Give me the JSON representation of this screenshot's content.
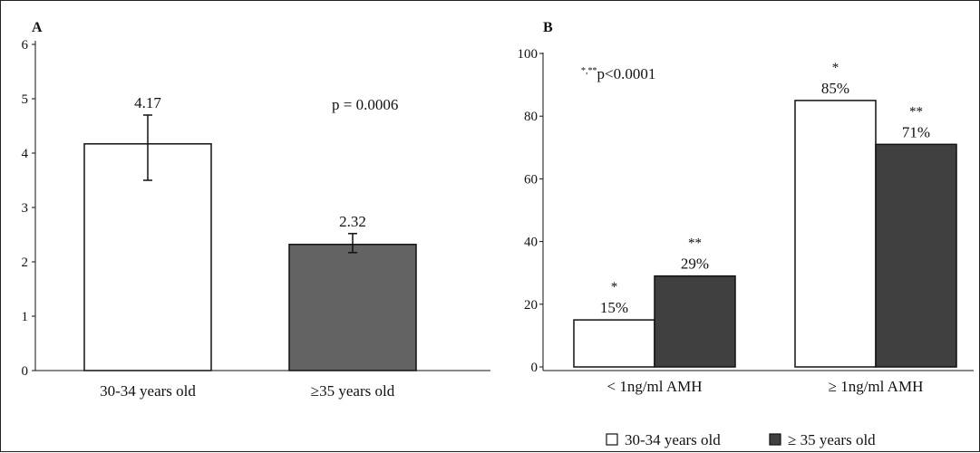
{
  "colors": {
    "series_30_34": "#ffffff",
    "series_35plus_A": "#636363",
    "series_35plus_B": "#404040",
    "outline": "#111111"
  },
  "chart_data": [
    {
      "panel": "A",
      "type": "bar",
      "categories": [
        "30-34 years old",
        "≥35 years old"
      ],
      "values": [
        4.17,
        2.32
      ],
      "value_labels": [
        "4.17",
        "2.32"
      ],
      "error_bars": [
        [
          3.5,
          4.7
        ],
        [
          2.17,
          2.52
        ]
      ],
      "annotation": "p = 0.0006",
      "ylim": [
        0,
        6
      ],
      "yticks": [
        "0",
        "1",
        "2",
        "3",
        "4",
        "5",
        "6"
      ],
      "title": "",
      "xlabel": "",
      "ylabel": ""
    },
    {
      "panel": "B",
      "type": "bar",
      "categories": [
        "< 1ng/ml AMH",
        "≥ 1ng/ml AMH"
      ],
      "series": [
        {
          "name": "30-34 years old",
          "values": [
            15,
            85
          ],
          "value_labels": [
            "15%",
            "85%"
          ],
          "stars": [
            "*",
            "*"
          ]
        },
        {
          "name": "≥ 35 years old",
          "values": [
            29,
            71
          ],
          "value_labels": [
            "29%",
            "71%"
          ],
          "stars": [
            "**",
            "**"
          ]
        }
      ],
      "annotation_sup": "*,**",
      "annotation": "p<0.0001",
      "ylim": [
        0,
        100
      ],
      "yticks": [
        "0",
        "20",
        "40",
        "60",
        "80",
        "100"
      ],
      "legend_position": "bottom",
      "title": "",
      "xlabel": "",
      "ylabel": ""
    }
  ]
}
